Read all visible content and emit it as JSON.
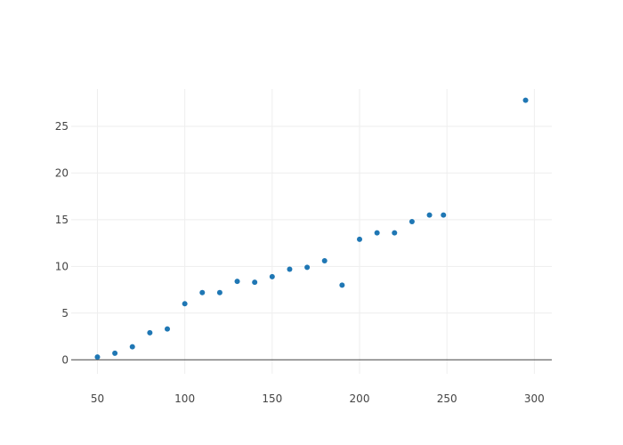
{
  "chart_data": {
    "type": "scatter",
    "title": "",
    "xlabel": "",
    "ylabel": "",
    "xlim": [
      35,
      310
    ],
    "ylim": [
      -1.5,
      29
    ],
    "x_ticks": [
      50,
      100,
      150,
      200,
      250,
      300
    ],
    "y_ticks": [
      0,
      5,
      10,
      15,
      20,
      25
    ],
    "grid": true,
    "legend": "none",
    "marker_color": "#1f77b4",
    "series": [
      {
        "x": [
          50,
          60,
          70,
          80,
          90,
          100,
          110,
          120,
          130,
          140,
          150,
          160,
          170,
          180,
          190,
          200,
          210,
          220,
          230,
          240,
          248,
          295
        ],
        "y": [
          0.3,
          0.7,
          1.4,
          2.9,
          3.3,
          6.0,
          7.2,
          7.2,
          8.4,
          8.3,
          8.9,
          9.7,
          9.9,
          10.6,
          8.0,
          12.9,
          13.6,
          13.6,
          14.8,
          15.5,
          15.5,
          27.8
        ]
      }
    ]
  }
}
